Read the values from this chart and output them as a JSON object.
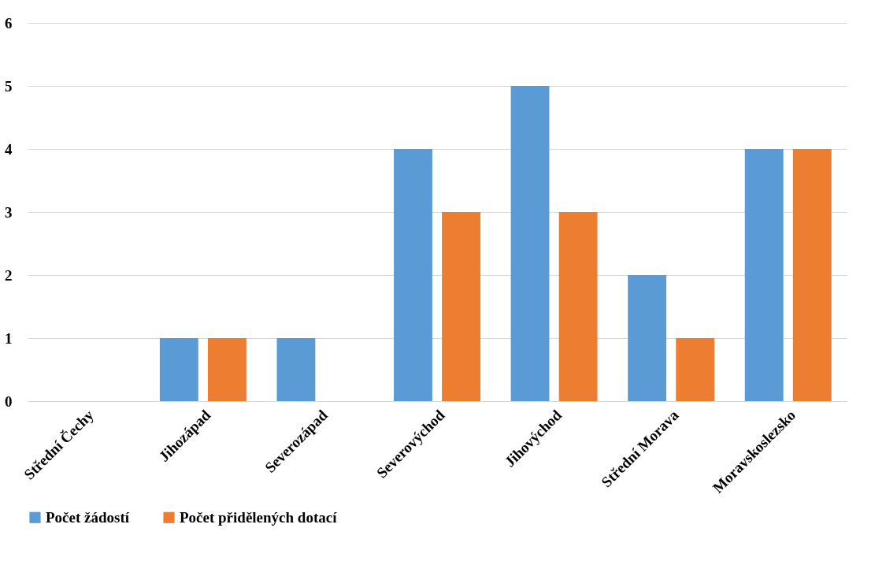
{
  "chart_data": {
    "type": "bar",
    "categories": [
      "Střední Čechy",
      "Jihozápad",
      "Severozápad",
      "Severovýchod",
      "Jihovýchod",
      "Střední Morava",
      "Moravskoslezsko"
    ],
    "series": [
      {
        "name": "Počet žádostí",
        "color": "#5b9bd5",
        "values": [
          0,
          1,
          1,
          4,
          5,
          2,
          4
        ]
      },
      {
        "name": "Počet přidělených dotací",
        "color": "#ed7d31",
        "values": [
          0,
          1,
          0,
          3,
          3,
          1,
          4
        ]
      }
    ],
    "ylim": [
      0,
      6
    ],
    "yticks": [
      0,
      1,
      2,
      3,
      4,
      5,
      6
    ],
    "grid": "y",
    "legend": "bottom"
  }
}
